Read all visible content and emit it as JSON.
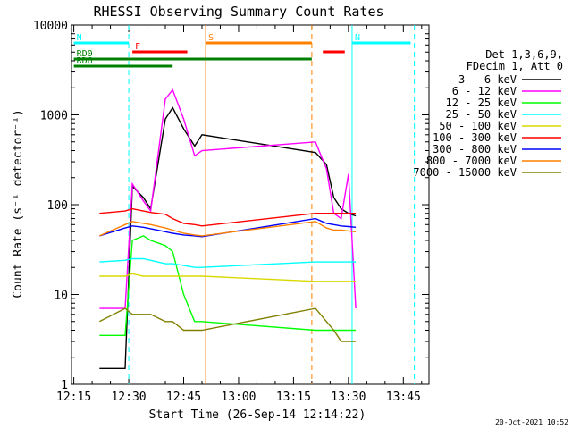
{
  "chart_data": {
    "type": "line",
    "title": "RHESSI Observing Summary Count Rates",
    "xlabel": "Start Time (26-Sep-14 12:14:22)",
    "ylabel": "Count Rate (s⁻¹ detector⁻¹)",
    "y_scale": "log",
    "ylim": [
      1,
      10000
    ],
    "xlim": [
      "12:14:22",
      "13:52:00"
    ],
    "x_ticks": [
      "12:15",
      "12:30",
      "12:45",
      "13:00",
      "13:15",
      "13:30",
      "13:45"
    ],
    "y_ticks": [
      "1",
      "10",
      "100",
      "1000",
      "10000"
    ],
    "legend_position": "right",
    "legend_header": [
      "Det 1,3,6,9,",
      "FDecim 1, Att 0"
    ],
    "timestamp": "20-Oct-2021 10:52",
    "series": [
      {
        "name": "3 - 6 keV",
        "color": "#000000",
        "points": [
          [
            "12:22",
            1.5
          ],
          [
            "12:29",
            1.5
          ],
          [
            "12:31",
            160
          ],
          [
            "12:34",
            120
          ],
          [
            "12:36",
            90
          ],
          [
            "12:40",
            900
          ],
          [
            "12:42",
            1200
          ],
          [
            "12:45",
            700
          ],
          [
            "12:48",
            450
          ],
          [
            "12:50",
            600
          ],
          [
            "13:21",
            380
          ],
          [
            "13:24",
            280
          ],
          [
            "13:26",
            120
          ],
          [
            "13:28",
            90
          ],
          [
            "13:30",
            80
          ],
          [
            "13:32",
            75
          ]
        ]
      },
      {
        "name": "6 - 12 keV",
        "color": "#ff00ff",
        "points": [
          [
            "12:22",
            7
          ],
          [
            "12:29",
            7
          ],
          [
            "12:31",
            170
          ],
          [
            "12:34",
            110
          ],
          [
            "12:36",
            85
          ],
          [
            "12:40",
            1500
          ],
          [
            "12:42",
            1900
          ],
          [
            "12:45",
            900
          ],
          [
            "12:48",
            350
          ],
          [
            "12:50",
            400
          ],
          [
            "13:21",
            500
          ],
          [
            "13:24",
            250
          ],
          [
            "13:26",
            80
          ],
          [
            "13:28",
            70
          ],
          [
            "13:30",
            220
          ],
          [
            "13:32",
            7
          ]
        ]
      },
      {
        "name": "12 - 25 keV",
        "color": "#00ff00",
        "points": [
          [
            "12:22",
            3.5
          ],
          [
            "12:29",
            3.5
          ],
          [
            "12:31",
            40
          ],
          [
            "12:34",
            45
          ],
          [
            "12:36",
            40
          ],
          [
            "12:40",
            35
          ],
          [
            "12:42",
            30
          ],
          [
            "12:45",
            10
          ],
          [
            "12:48",
            5
          ],
          [
            "12:50",
            5
          ],
          [
            "13:21",
            4
          ],
          [
            "13:24",
            4
          ],
          [
            "13:26",
            4
          ],
          [
            "13:28",
            4
          ],
          [
            "13:30",
            4
          ],
          [
            "13:32",
            4
          ]
        ]
      },
      {
        "name": "25 - 50 keV",
        "color": "#00ffff",
        "points": [
          [
            "12:22",
            23
          ],
          [
            "12:29",
            24
          ],
          [
            "12:31",
            25
          ],
          [
            "12:34",
            25
          ],
          [
            "12:36",
            24
          ],
          [
            "12:40",
            22
          ],
          [
            "12:42",
            22
          ],
          [
            "12:45",
            21
          ],
          [
            "12:48",
            20
          ],
          [
            "12:50",
            20
          ],
          [
            "13:21",
            23
          ],
          [
            "13:24",
            23
          ],
          [
            "13:26",
            23
          ],
          [
            "13:28",
            23
          ],
          [
            "13:30",
            23
          ],
          [
            "13:32",
            23
          ]
        ]
      },
      {
        "name": "50 - 100 keV",
        "color": "#d8d800",
        "points": [
          [
            "12:22",
            16
          ],
          [
            "12:29",
            16
          ],
          [
            "12:31",
            17
          ],
          [
            "12:34",
            16
          ],
          [
            "12:36",
            16
          ],
          [
            "12:40",
            16
          ],
          [
            "12:42",
            16
          ],
          [
            "12:45",
            16
          ],
          [
            "12:48",
            16
          ],
          [
            "12:50",
            16
          ],
          [
            "13:21",
            14
          ],
          [
            "13:24",
            14
          ],
          [
            "13:26",
            14
          ],
          [
            "13:28",
            14
          ],
          [
            "13:30",
            14
          ],
          [
            "13:32",
            14
          ]
        ]
      },
      {
        "name": "100 - 300 keV",
        "color": "#ff0000",
        "points": [
          [
            "12:22",
            80
          ],
          [
            "12:29",
            85
          ],
          [
            "12:31",
            90
          ],
          [
            "12:34",
            85
          ],
          [
            "12:36",
            82
          ],
          [
            "12:40",
            78
          ],
          [
            "12:42",
            70
          ],
          [
            "12:45",
            62
          ],
          [
            "12:48",
            60
          ],
          [
            "12:50",
            58
          ],
          [
            "13:21",
            80
          ],
          [
            "13:24",
            80
          ],
          [
            "13:26",
            80
          ],
          [
            "13:28",
            80
          ],
          [
            "13:30",
            80
          ],
          [
            "13:32",
            80
          ]
        ]
      },
      {
        "name": "300 - 800 keV",
        "color": "#0000ff",
        "points": [
          [
            "12:22",
            45
          ],
          [
            "12:29",
            55
          ],
          [
            "12:31",
            58
          ],
          [
            "12:34",
            56
          ],
          [
            "12:36",
            54
          ],
          [
            "12:40",
            50
          ],
          [
            "12:42",
            48
          ],
          [
            "12:45",
            46
          ],
          [
            "12:48",
            45
          ],
          [
            "12:50",
            44
          ],
          [
            "13:21",
            70
          ],
          [
            "13:24",
            62
          ],
          [
            "13:26",
            60
          ],
          [
            "13:28",
            58
          ],
          [
            "13:30",
            57
          ],
          [
            "13:32",
            56
          ]
        ]
      },
      {
        "name": "800 - 7000 keV",
        "color": "#ff8000",
        "points": [
          [
            "12:22",
            45
          ],
          [
            "12:29",
            60
          ],
          [
            "12:31",
            65
          ],
          [
            "12:34",
            62
          ],
          [
            "12:36",
            60
          ],
          [
            "12:40",
            55
          ],
          [
            "12:42",
            52
          ],
          [
            "12:45",
            48
          ],
          [
            "12:48",
            46
          ],
          [
            "12:50",
            45
          ],
          [
            "13:21",
            65
          ],
          [
            "13:24",
            55
          ],
          [
            "13:26",
            52
          ],
          [
            "13:28",
            52
          ],
          [
            "13:30",
            51
          ],
          [
            "13:32",
            50
          ]
        ]
      },
      {
        "name": "7000 - 15000 keV",
        "color": "#808000",
        "points": [
          [
            "12:22",
            5
          ],
          [
            "12:29",
            7
          ],
          [
            "12:31",
            6
          ],
          [
            "12:34",
            6
          ],
          [
            "12:36",
            6
          ],
          [
            "12:40",
            5
          ],
          [
            "12:42",
            5
          ],
          [
            "12:45",
            4
          ],
          [
            "12:48",
            4
          ],
          [
            "12:50",
            4
          ],
          [
            "13:21",
            7
          ],
          [
            "13:24",
            5
          ],
          [
            "13:26",
            4
          ],
          [
            "13:28",
            3
          ],
          [
            "13:30",
            3
          ],
          [
            "13:32",
            3
          ]
        ]
      }
    ],
    "annotations": [
      {
        "label": "N",
        "color": "#00ffff",
        "start": "12:15",
        "end": "12:30",
        "level": "top"
      },
      {
        "label": "N",
        "color": "#00ffff",
        "start": "13:31",
        "end": "13:47",
        "level": "top"
      },
      {
        "label": "F",
        "color": "#ff0000",
        "start": "12:31",
        "end": "12:46",
        "level": "second"
      },
      {
        "label": "",
        "color": "#ff0000",
        "start": "13:23",
        "end": "13:29",
        "level": "second"
      },
      {
        "label": "S",
        "color": "#ff8000",
        "start": "12:51",
        "end": "13:20",
        "level": "top"
      },
      {
        "label": "RD0",
        "color": "#008000",
        "start": "12:15",
        "end": "13:20",
        "level": "third"
      },
      {
        "label": "RD6",
        "color": "#008000",
        "start": "12:15",
        "end": "12:42",
        "level": "fourth"
      }
    ],
    "vertical_markers": [
      {
        "time": "12:30",
        "color": "#00ffff",
        "style": "dashed"
      },
      {
        "time": "12:51",
        "color": "#ff8000",
        "style": "solid"
      },
      {
        "time": "13:20",
        "color": "#ff8000",
        "style": "dashed"
      },
      {
        "time": "13:31",
        "color": "#00ffff",
        "style": "solid"
      },
      {
        "time": "13:48",
        "color": "#00ffff",
        "style": "dashed"
      }
    ]
  }
}
